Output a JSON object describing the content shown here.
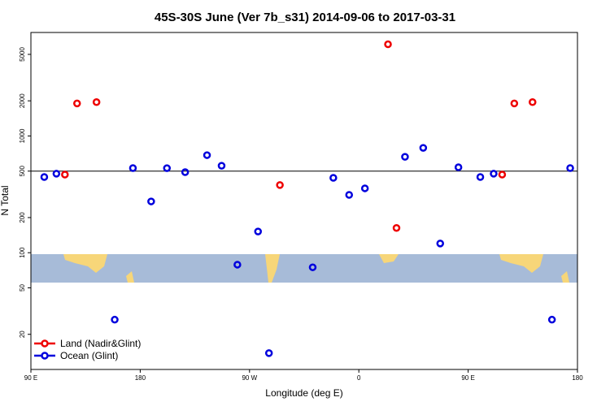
{
  "chart_data": {
    "type": "scatter",
    "title": "45S-30S June (Ver 7b_s31)   2014-09-06 to 2017-03-31",
    "x_label": "Longitude (deg E)",
    "y_label": "N Total",
    "log_y": true,
    "legend": "bottom-left",
    "hline": 500,
    "xlim": [
      90,
      540
    ],
    "ylim": [
      10,
      7700
    ],
    "xticks": [
      {
        "value": 90,
        "label": "90 E"
      },
      180,
      {
        "value": 270,
        "label": "90 W"
      },
      {
        "value": 360,
        "label": "0"
      },
      {
        "value": 450,
        "label": "90 E"
      },
      {
        "value": 540,
        "label": "180"
      }
    ],
    "yticks": [
      20,
      50,
      100,
      200,
      500,
      1000,
      2000,
      5000
    ],
    "series": [
      {
        "name": "Land (Nadir&Glint)",
        "color": "#ee0000",
        "x": [
          118,
          128,
          144,
          295,
          384,
          391,
          478,
          488,
          503
        ],
        "values": [
          467,
          1900,
          1950,
          380,
          6100,
          163,
          467,
          1900,
          1950
        ]
      },
      {
        "name": "Ocean (Glint)",
        "color": "#0000dd",
        "x": [
          101,
          111,
          174,
          159,
          189,
          202,
          217,
          235,
          247,
          260,
          277,
          286,
          322,
          339,
          352,
          365,
          398,
          413,
          427,
          442,
          460,
          471,
          519,
          534
        ],
        "values": [
          445,
          475,
          531,
          26.7,
          275,
          530,
          490,
          685,
          556,
          79,
          152,
          13.8,
          75,
          438,
          313,
          356,
          663,
          791,
          120,
          539,
          445,
          475,
          26.7,
          531
        ]
      }
    ]
  }
}
